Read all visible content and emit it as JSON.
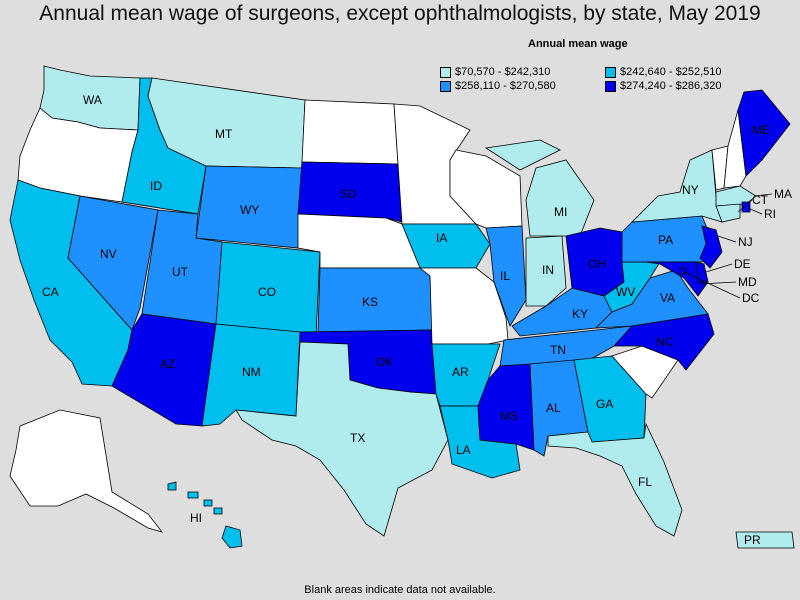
{
  "title": "Annual mean wage of surgeons, except ophthalmologists, by state, May 2019",
  "legend": {
    "title": "Annual mean wage",
    "items": [
      {
        "label": "$70,570 - $242,310",
        "color": "#b0ecee"
      },
      {
        "label": "$242,640 - $252,510",
        "color": "#00bfee"
      },
      {
        "label": "$258,110 - $270,580",
        "color": "#1e90ff"
      },
      {
        "label": "$274,240 - $286,320",
        "color": "#0000ee"
      }
    ],
    "blank_color": "#ffffff"
  },
  "footnote": "Blank areas indicate data not available.",
  "states": {
    "WA": "$70,570 - $242,310",
    "MT": "$70,570 - $242,310",
    "TX": "$70,570 - $242,310",
    "NY": "$70,570 - $242,310",
    "MI": "$70,570 - $242,310",
    "IN": "$70,570 - $242,310",
    "FL": "$70,570 - $242,310",
    "CT": "$70,570 - $242,310",
    "MA": "$70,570 - $242,310",
    "PR": "$70,570 - $242,310",
    "CA": "$242,640 - $252,510",
    "ID": "$242,640 - $252,510",
    "CO": "$242,640 - $252,510",
    "NM": "$242,640 - $252,510",
    "IA": "$242,640 - $252,510",
    "AR": "$242,640 - $252,510",
    "LA": "$242,640 - $252,510",
    "GA": "$242,640 - $252,510",
    "WV": "$242,640 - $252,510",
    "HI": "$242,640 - $252,510",
    "NV": "$258,110 - $270,580",
    "UT": "$258,110 - $270,580",
    "WY": "$258,110 - $270,580",
    "KS": "$258,110 - $270,580",
    "IL": "$258,110 - $270,580",
    "KY": "$258,110 - $270,580",
    "TN": "$258,110 - $270,580",
    "AL": "$258,110 - $270,580",
    "PA": "$258,110 - $270,580",
    "VA": "$258,110 - $270,580",
    "AZ": "$274,240 - $286,320",
    "SD": "$274,240 - $286,320",
    "OK": "$274,240 - $286,320",
    "MS": "$274,240 - $286,320",
    "OH": "$274,240 - $286,320",
    "NC": "$274,240 - $286,320",
    "ME": "$274,240 - $286,320",
    "NJ": "$274,240 - $286,320",
    "MD": "$274,240 - $286,320",
    "DE": "$274,240 - $286,320",
    "RI": "$274,240 - $286,320",
    "DC": "$274,240 - $286,320",
    "OR": "",
    "ND": "",
    "MN": "",
    "WI": "",
    "NE": "",
    "MO": "",
    "SC": "",
    "VT": "",
    "NH": "",
    "AK": ""
  }
}
